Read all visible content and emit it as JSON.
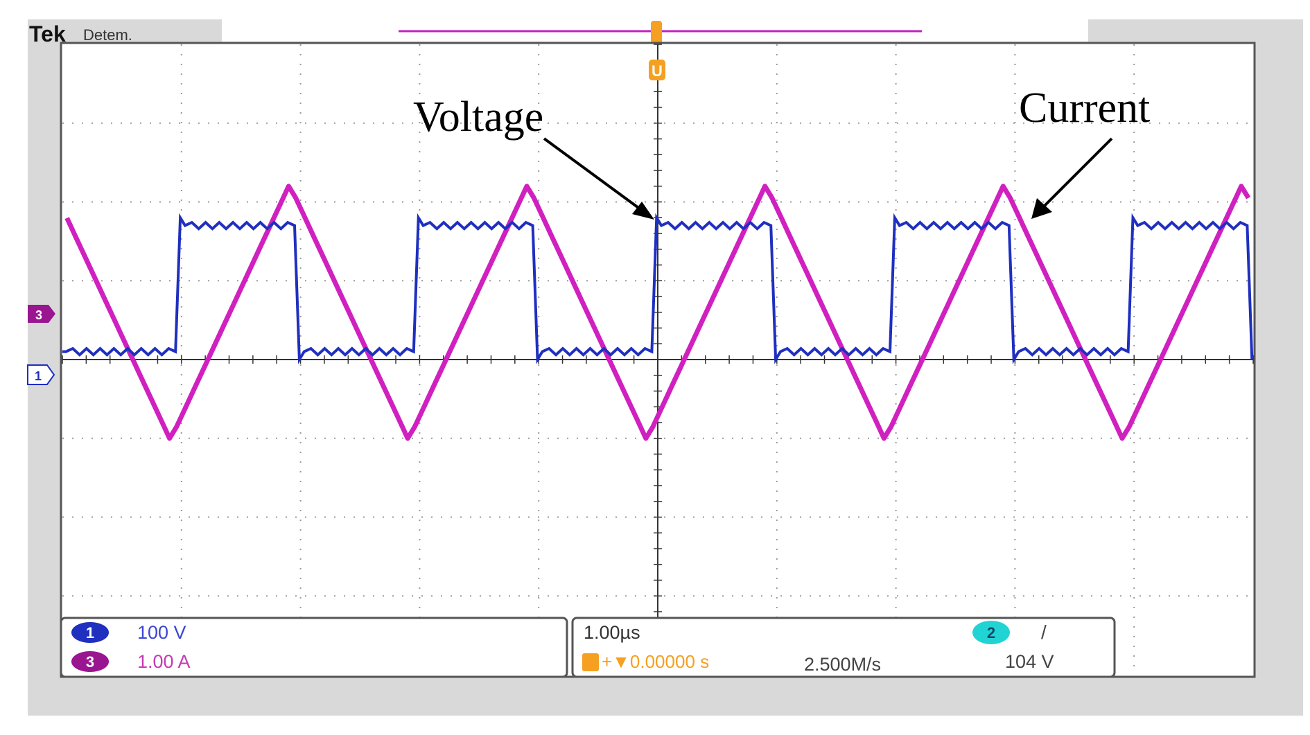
{
  "header": {
    "brand": "Tek",
    "status": "Detem."
  },
  "trigger": {
    "marker": "U"
  },
  "annotations": {
    "voltage": "Voltage",
    "current": "Current"
  },
  "channels": {
    "ch1": {
      "number": "1",
      "scale": "100 V",
      "color": "#1f2fbf"
    },
    "ch3": {
      "number": "3",
      "scale": "1.00 A",
      "color": "#b0109f"
    },
    "ch2": {
      "number": "2",
      "slope": "/",
      "level": "104 V",
      "color": "#22d3d3"
    }
  },
  "timebase": {
    "scale": "1.00µs",
    "position": "+▼0.00000 s",
    "sample_rate": "2.500M/s"
  },
  "colors": {
    "grid_dots": "#9a9a9a",
    "voltage_trace": "#1f2fbf",
    "current_trace": "#d020c0",
    "trigger": "#f5a020",
    "frame_gray": "#d9d9d9"
  },
  "chart_data": {
    "type": "line",
    "divisions": {
      "x": 10,
      "y": 8
    },
    "x_unit": "µs",
    "x_per_div": 1.0,
    "series": [
      {
        "name": "Voltage",
        "channel": "1",
        "units_per_div": 100,
        "unit": "V",
        "low_div": 0.1,
        "high_div": 1.7,
        "period_div": 2.0,
        "high_time_div": 1.0,
        "first_rise_div": 0.95
      },
      {
        "name": "Current",
        "channel": "3",
        "units_per_div": 1.0,
        "unit": "A",
        "offset_div": 0.6,
        "peak_high_div": 2.2,
        "peak_low_div": -1.0,
        "period_div": 2.0,
        "first_peak_div": 1.9
      }
    ]
  }
}
